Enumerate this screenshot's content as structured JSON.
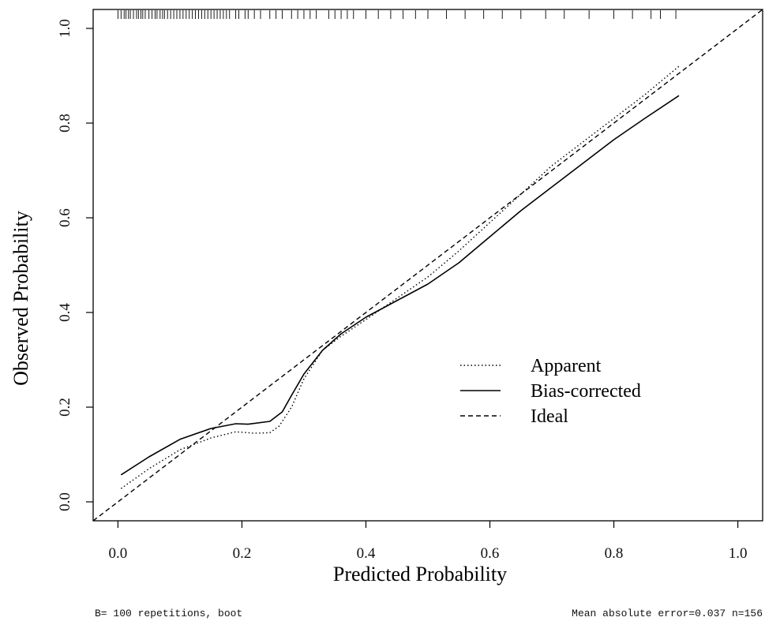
{
  "chart_data": {
    "type": "line",
    "title": "",
    "xlabel": "Predicted Probability",
    "ylabel": "Observed Probability",
    "xlim": [
      -0.04,
      1.04
    ],
    "ylim": [
      -0.04,
      1.04
    ],
    "xticks": [
      0.0,
      0.2,
      0.4,
      0.6,
      0.8,
      1.0
    ],
    "yticks": [
      0.0,
      0.2,
      0.4,
      0.6,
      0.8,
      1.0
    ],
    "xtick_labels": [
      "0.0",
      "0.2",
      "0.4",
      "0.6",
      "0.8",
      "1.0"
    ],
    "ytick_labels": [
      "0.0",
      "0.2",
      "0.4",
      "0.6",
      "0.8",
      "1.0"
    ],
    "grid": false,
    "legend_position": "center-right",
    "series": [
      {
        "name": "Apparent",
        "style": "dotted",
        "x": [
          0.005,
          0.05,
          0.1,
          0.15,
          0.19,
          0.22,
          0.245,
          0.26,
          0.28,
          0.3,
          0.33,
          0.36,
          0.4,
          0.45,
          0.5,
          0.55,
          0.6,
          0.65,
          0.7,
          0.75,
          0.8,
          0.85,
          0.905
        ],
        "y": [
          0.028,
          0.07,
          0.11,
          0.135,
          0.148,
          0.145,
          0.146,
          0.16,
          0.2,
          0.26,
          0.32,
          0.35,
          0.385,
          0.43,
          0.475,
          0.53,
          0.59,
          0.65,
          0.71,
          0.76,
          0.81,
          0.86,
          0.92
        ]
      },
      {
        "name": "Bias-corrected",
        "style": "solid",
        "x": [
          0.005,
          0.05,
          0.1,
          0.15,
          0.19,
          0.21,
          0.245,
          0.265,
          0.28,
          0.3,
          0.33,
          0.36,
          0.4,
          0.45,
          0.5,
          0.55,
          0.6,
          0.65,
          0.7,
          0.75,
          0.8,
          0.85,
          0.905
        ],
        "y": [
          0.057,
          0.095,
          0.132,
          0.155,
          0.165,
          0.164,
          0.17,
          0.19,
          0.225,
          0.27,
          0.32,
          0.355,
          0.39,
          0.425,
          0.46,
          0.505,
          0.56,
          0.615,
          0.665,
          0.715,
          0.765,
          0.81,
          0.858
        ]
      },
      {
        "name": "Ideal",
        "style": "dashed",
        "x": [
          -0.04,
          1.04
        ],
        "y": [
          -0.04,
          1.04
        ]
      }
    ],
    "rug_x": [
      0.0,
      0.005,
      0.01,
      0.013,
      0.017,
      0.02,
      0.025,
      0.03,
      0.033,
      0.037,
      0.04,
      0.044,
      0.05,
      0.055,
      0.06,
      0.063,
      0.068,
      0.072,
      0.075,
      0.08,
      0.085,
      0.09,
      0.095,
      0.1,
      0.105,
      0.11,
      0.115,
      0.12,
      0.125,
      0.13,
      0.135,
      0.14,
      0.145,
      0.15,
      0.155,
      0.16,
      0.165,
      0.17,
      0.175,
      0.18,
      0.19,
      0.195,
      0.205,
      0.21,
      0.22,
      0.23,
      0.245,
      0.255,
      0.265,
      0.28,
      0.29,
      0.3,
      0.31,
      0.32,
      0.34,
      0.35,
      0.36,
      0.37,
      0.38,
      0.4,
      0.42,
      0.44,
      0.46,
      0.48,
      0.5,
      0.53,
      0.56,
      0.59,
      0.62,
      0.65,
      0.69,
      0.72,
      0.76,
      0.8,
      0.83,
      0.86,
      0.875,
      0.9
    ],
    "legend": {
      "items": [
        {
          "label": "Apparent",
          "style": "dotted"
        },
        {
          "label": "Bias-corrected",
          "style": "solid"
        },
        {
          "label": "Ideal",
          "style": "dashed"
        }
      ]
    }
  },
  "notes": {
    "left": "B= 100 repetitions, boot",
    "right": "Mean absolute error=0.037 n=156"
  }
}
